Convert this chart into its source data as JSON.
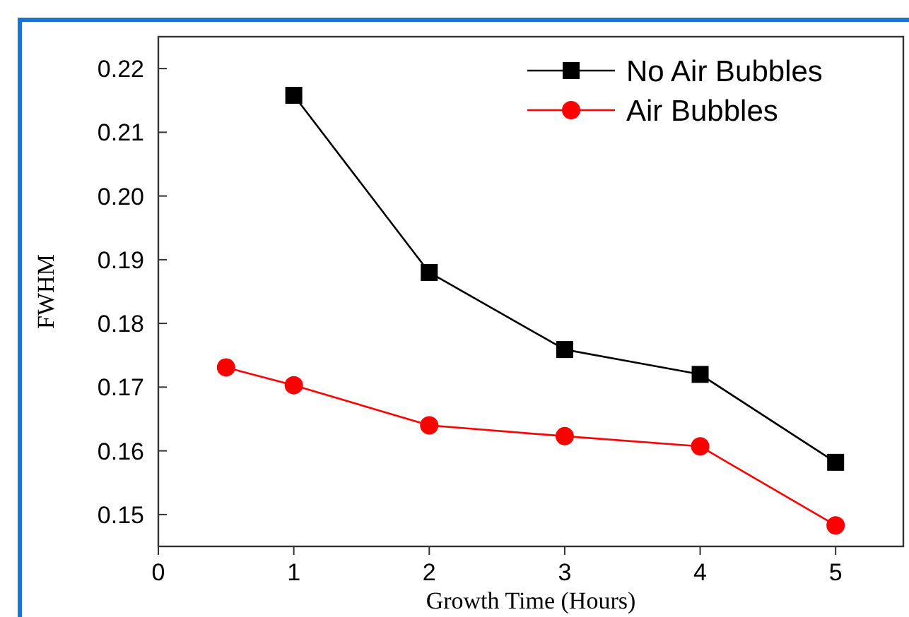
{
  "chart_data": {
    "type": "line",
    "xlabel": "Growth Time (Hours)",
    "ylabel": "FWHM",
    "xlim": [
      0,
      5.5
    ],
    "xticks": [
      0,
      1,
      2,
      3,
      4,
      5
    ],
    "ylim": [
      0.145,
      0.225
    ],
    "yticks": [
      0.15,
      0.16,
      0.17,
      0.18,
      0.19,
      {
        "value": 0.2,
        "label": "0.20"
      },
      0.21,
      0.22
    ],
    "legend": "top right",
    "grid": false,
    "line_style": "solid",
    "series": [
      {
        "name": "No Air Bubbles",
        "color": "#000000",
        "marker": "square",
        "x": [
          1,
          2,
          3,
          4,
          5
        ],
        "values": [
          0.2158,
          0.188,
          0.1759,
          0.172,
          0.1582
        ]
      },
      {
        "name": "Air Bubbles",
        "color": "#ff0000",
        "marker": "circle",
        "x": [
          0.5,
          1,
          2,
          3,
          4,
          5
        ],
        "values": [
          0.1731,
          0.1703,
          0.164,
          0.1623,
          0.1607,
          0.1483
        ]
      }
    ]
  }
}
